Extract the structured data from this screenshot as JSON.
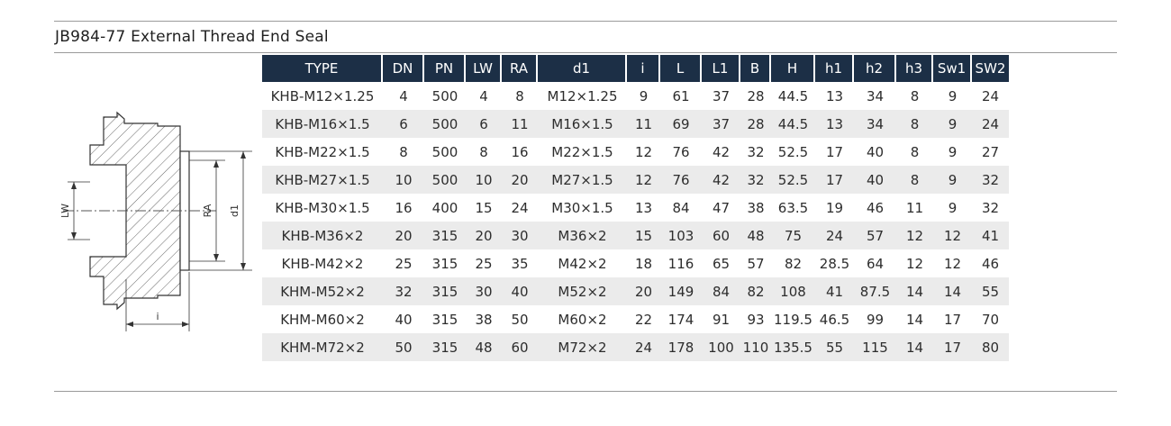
{
  "title": "JB984-77 External Thread End Seal",
  "drawing": {
    "labels": {
      "lw": "LW",
      "ra": "RA",
      "d1": "d1",
      "i": "i"
    }
  },
  "table": {
    "headers": [
      "TYPE",
      "DN",
      "PN",
      "LW",
      "RA",
      "d1",
      "i",
      "L",
      "L1",
      "B",
      "H",
      "h1",
      "h2",
      "h3",
      "Sw1",
      "SW2"
    ],
    "rows": [
      [
        "KHB-M12×1.25",
        "4",
        "500",
        "4",
        "8",
        "M12×1.25",
        "9",
        "61",
        "37",
        "28",
        "44.5",
        "13",
        "34",
        "8",
        "9",
        "24"
      ],
      [
        "KHB-M16×1.5",
        "6",
        "500",
        "6",
        "11",
        "M16×1.5",
        "11",
        "69",
        "37",
        "28",
        "44.5",
        "13",
        "34",
        "8",
        "9",
        "24"
      ],
      [
        "KHB-M22×1.5",
        "8",
        "500",
        "8",
        "16",
        "M22×1.5",
        "12",
        "76",
        "42",
        "32",
        "52.5",
        "17",
        "40",
        "8",
        "9",
        "27"
      ],
      [
        "KHB-M27×1.5",
        "10",
        "500",
        "10",
        "20",
        "M27×1.5",
        "12",
        "76",
        "42",
        "32",
        "52.5",
        "17",
        "40",
        "8",
        "9",
        "32"
      ],
      [
        "KHB-M30×1.5",
        "16",
        "400",
        "15",
        "24",
        "M30×1.5",
        "13",
        "84",
        "47",
        "38",
        "63.5",
        "19",
        "46",
        "11",
        "9",
        "32"
      ],
      [
        "KHB-M36×2",
        "20",
        "315",
        "20",
        "30",
        "M36×2",
        "15",
        "103",
        "60",
        "48",
        "75",
        "24",
        "57",
        "12",
        "12",
        "41"
      ],
      [
        "KHB-M42×2",
        "25",
        "315",
        "25",
        "35",
        "M42×2",
        "18",
        "116",
        "65",
        "57",
        "82",
        "28.5",
        "64",
        "12",
        "12",
        "46"
      ],
      [
        "KHM-M52×2",
        "32",
        "315",
        "30",
        "40",
        "M52×2",
        "20",
        "149",
        "84",
        "82",
        "108",
        "41",
        "87.5",
        "14",
        "14",
        "55"
      ],
      [
        "KHM-M60×2",
        "40",
        "315",
        "38",
        "50",
        "M60×2",
        "22",
        "174",
        "91",
        "93",
        "119.5",
        "46.5",
        "99",
        "14",
        "17",
        "70"
      ],
      [
        "KHM-M72×2",
        "50",
        "315",
        "48",
        "60",
        "M72×2",
        "24",
        "178",
        "100",
        "110",
        "135.5",
        "55",
        "115",
        "14",
        "17",
        "80"
      ]
    ]
  }
}
